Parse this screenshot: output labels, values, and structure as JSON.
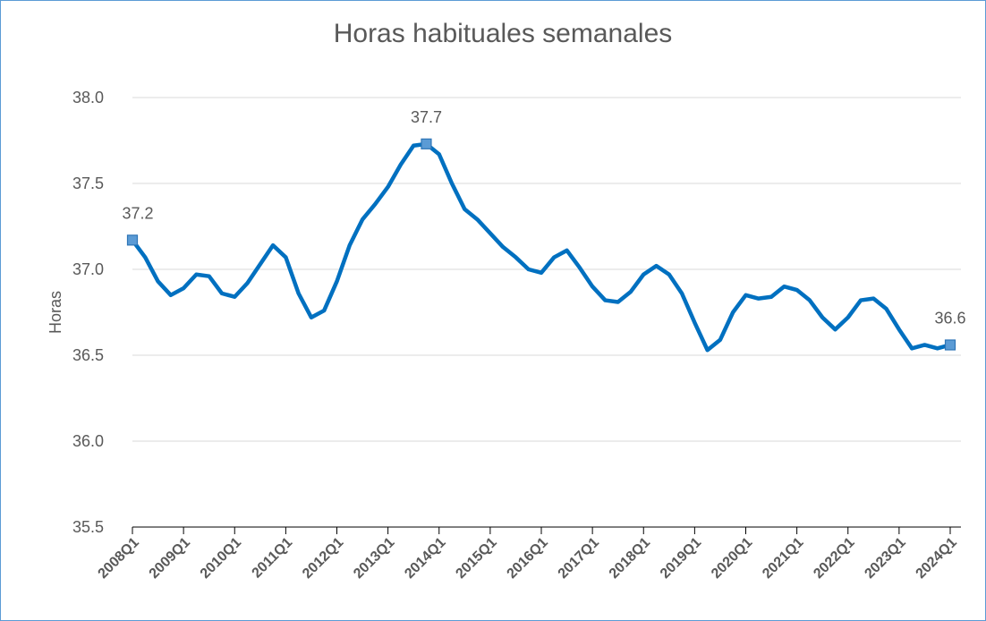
{
  "chart_data": {
    "type": "line",
    "title": "Horas habituales semanales",
    "ylabel": "Horas",
    "categories": [
      "2008Q1",
      null,
      null,
      null,
      "2009Q1",
      null,
      null,
      null,
      "2010Q1",
      null,
      null,
      null,
      "2011Q1",
      null,
      null,
      null,
      "2012Q1",
      null,
      null,
      null,
      "2013Q1",
      null,
      null,
      null,
      "2014Q1",
      null,
      null,
      null,
      "2015Q1",
      null,
      null,
      null,
      "2016Q1",
      null,
      null,
      null,
      "2017Q1",
      null,
      null,
      null,
      "2018Q1",
      null,
      null,
      null,
      "2019Q1",
      null,
      null,
      null,
      "2020Q1",
      null,
      null,
      null,
      "2021Q1",
      null,
      null,
      null,
      "2022Q1",
      null,
      null,
      null,
      "2023Q1",
      null,
      null,
      null,
      "2024Q1"
    ],
    "values": [
      37.17,
      37.07,
      36.93,
      36.85,
      36.89,
      36.97,
      36.96,
      36.86,
      36.84,
      36.92,
      37.03,
      37.14,
      37.07,
      36.86,
      36.72,
      36.76,
      36.93,
      37.14,
      37.29,
      37.38,
      37.48,
      37.61,
      37.72,
      37.73,
      37.67,
      37.5,
      37.35,
      37.29,
      37.21,
      37.13,
      37.07,
      37.0,
      36.98,
      37.07,
      37.11,
      37.01,
      36.9,
      36.82,
      36.81,
      36.87,
      36.97,
      37.02,
      36.97,
      36.86,
      36.69,
      36.53,
      36.59,
      36.75,
      36.85,
      36.83,
      36.84,
      36.9,
      36.88,
      36.82,
      36.72,
      36.65,
      36.72,
      36.82,
      36.83,
      36.77,
      36.65,
      36.54,
      36.56,
      36.54,
      36.56
    ],
    "value_labels": [
      "37.2",
      null,
      null,
      null,
      null,
      null,
      null,
      null,
      null,
      null,
      null,
      null,
      null,
      null,
      null,
      null,
      null,
      null,
      null,
      null,
      null,
      null,
      null,
      "37.7",
      null,
      null,
      null,
      null,
      null,
      null,
      null,
      null,
      null,
      null,
      null,
      null,
      null,
      null,
      null,
      null,
      null,
      null,
      null,
      null,
      null,
      null,
      null,
      null,
      null,
      null,
      null,
      null,
      null,
      null,
      null,
      null,
      null,
      null,
      null,
      null,
      null,
      null,
      null,
      null,
      "36.6"
    ],
    "color": "#0070c0",
    "ylim": [
      35.5,
      38.0
    ],
    "yticks": [
      {
        "value": 35.5,
        "label": "35.5"
      },
      {
        "value": 36.0,
        "label": "36.0"
      },
      {
        "value": 36.5,
        "label": "36.5"
      },
      {
        "value": 37.0,
        "label": "37.0"
      },
      {
        "value": 37.5,
        "label": "37.5"
      },
      {
        "value": 38.0,
        "label": "38.0"
      }
    ],
    "grid": true
  }
}
